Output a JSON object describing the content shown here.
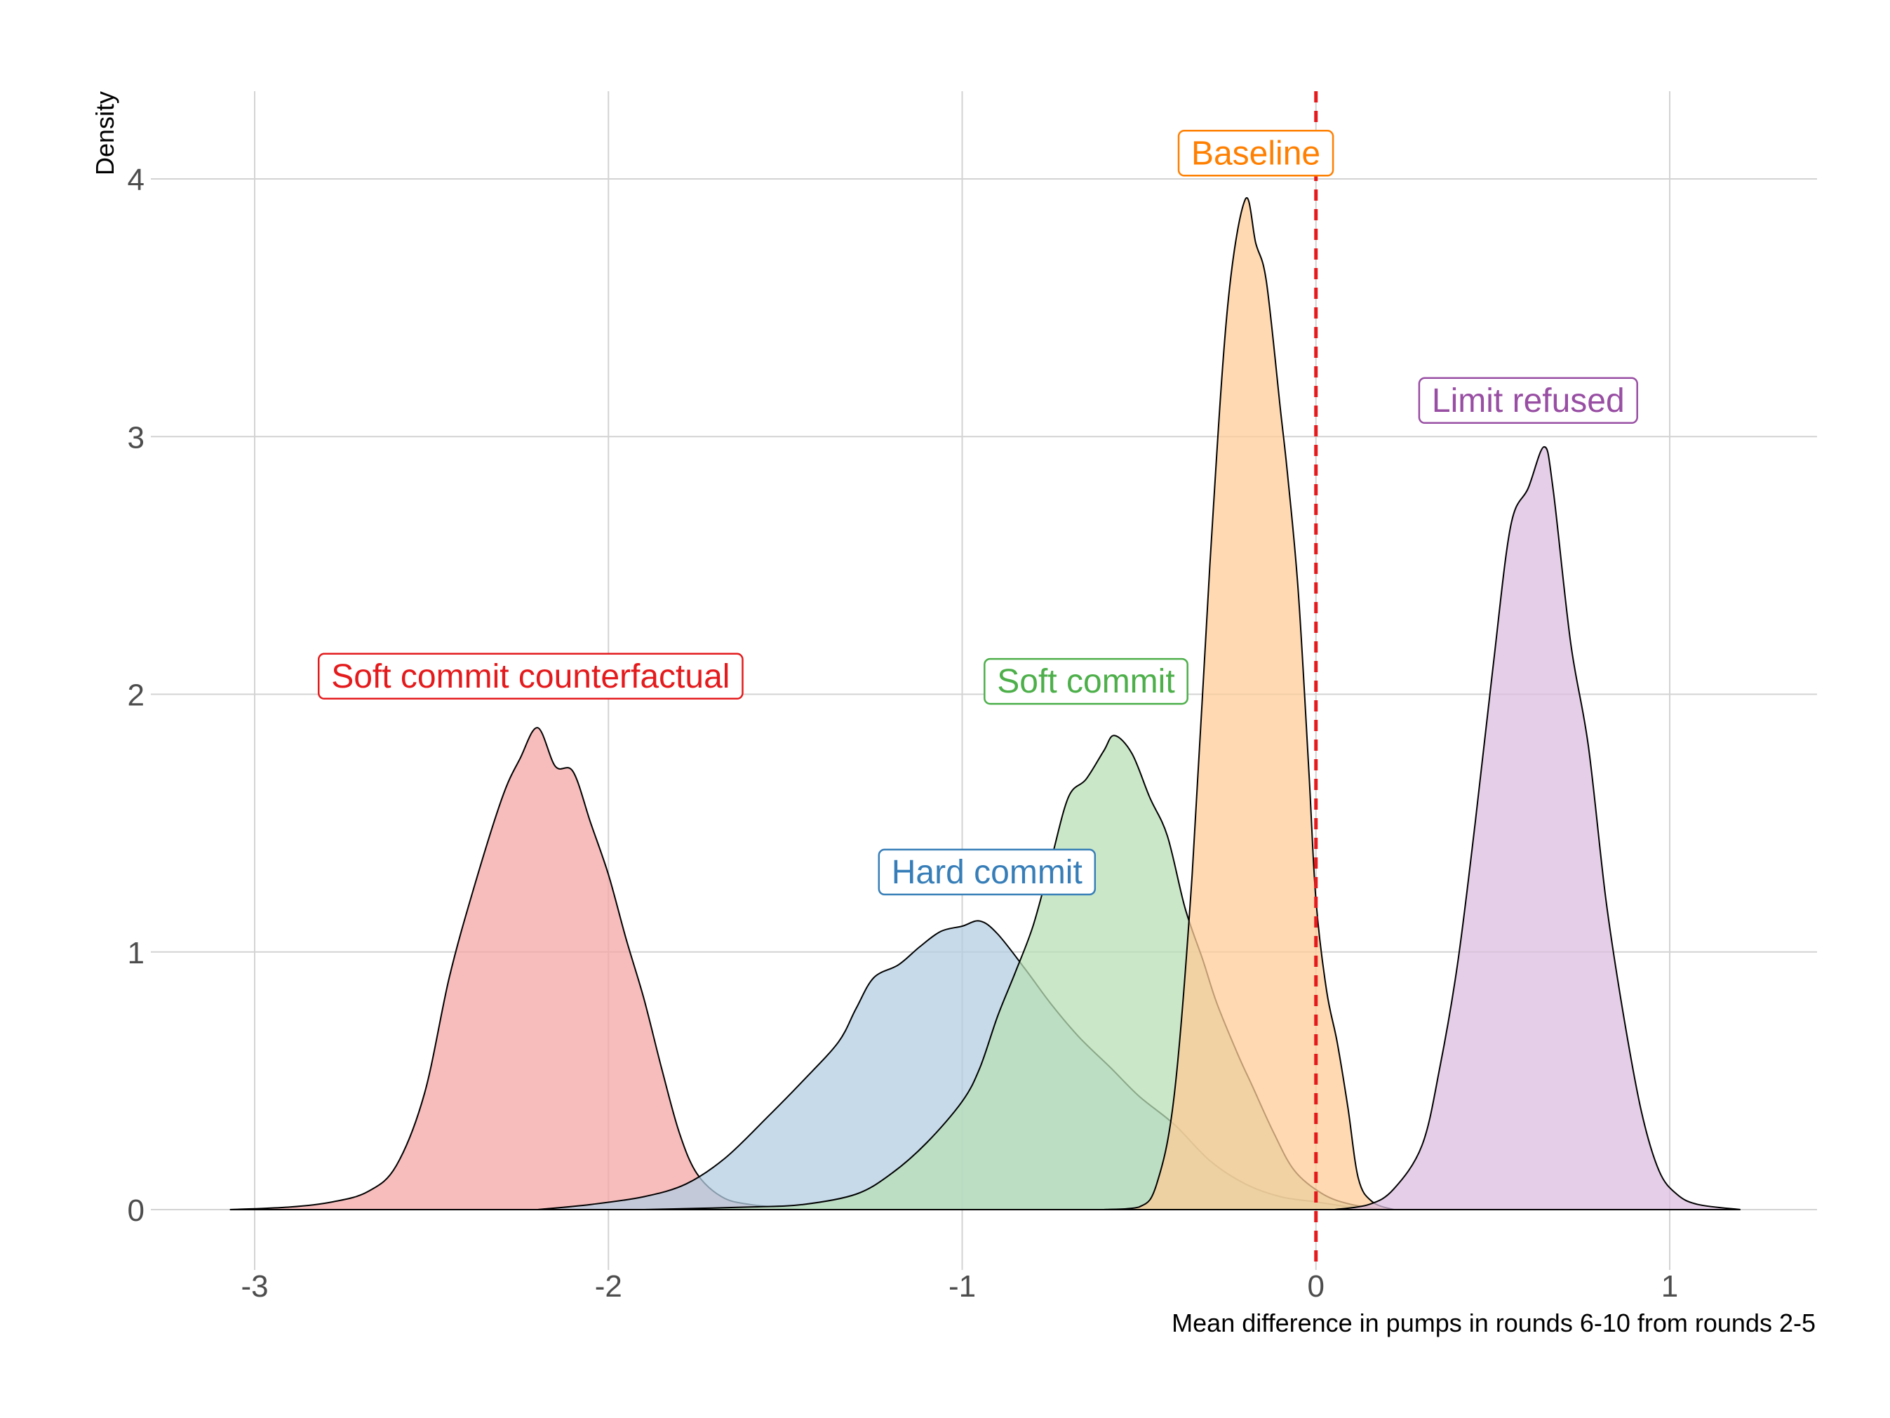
{
  "chart_data": {
    "type": "area",
    "title": "",
    "xlabel": "Mean difference in pumps in rounds 6-10 from rounds 2-5",
    "ylabel": "Density",
    "xlim": [
      -3.3,
      1.4
    ],
    "ylim": [
      -0.2,
      4.35
    ],
    "x_ticks": [
      -3,
      -2,
      -1,
      0,
      1
    ],
    "y_ticks": [
      0,
      1,
      2,
      3,
      4
    ],
    "grid": true,
    "legend": "none (labels placed on chart)",
    "reference_line": {
      "x": 0,
      "color": "#e41a1c",
      "style": "dashed"
    },
    "series": [
      {
        "name": "Soft commit counterfactual",
        "color": "#e41a1c",
        "fill": "#f4a5a6",
        "label_pos": {
          "x": -2.22,
          "y": 2.07
        },
        "points": [
          [
            -3.07,
            0
          ],
          [
            -2.9,
            0.01
          ],
          [
            -2.78,
            0.03
          ],
          [
            -2.68,
            0.07
          ],
          [
            -2.6,
            0.17
          ],
          [
            -2.52,
            0.45
          ],
          [
            -2.45,
            0.9
          ],
          [
            -2.38,
            1.25
          ],
          [
            -2.3,
            1.6
          ],
          [
            -2.25,
            1.75
          ],
          [
            -2.2,
            1.87
          ],
          [
            -2.15,
            1.72
          ],
          [
            -2.1,
            1.7
          ],
          [
            -2.05,
            1.5
          ],
          [
            -2.0,
            1.3
          ],
          [
            -1.95,
            1.05
          ],
          [
            -1.9,
            0.82
          ],
          [
            -1.85,
            0.55
          ],
          [
            -1.8,
            0.3
          ],
          [
            -1.75,
            0.14
          ],
          [
            -1.68,
            0.05
          ],
          [
            -1.6,
            0.02
          ],
          [
            -1.45,
            0
          ]
        ]
      },
      {
        "name": "Hard commit",
        "color": "#377eb8",
        "fill": "#b3cde3",
        "label_pos": {
          "x": -0.93,
          "y": 1.31
        },
        "points": [
          [
            -2.2,
            0
          ],
          [
            -2.05,
            0.02
          ],
          [
            -1.9,
            0.05
          ],
          [
            -1.78,
            0.1
          ],
          [
            -1.67,
            0.2
          ],
          [
            -1.55,
            0.36
          ],
          [
            -1.45,
            0.5
          ],
          [
            -1.35,
            0.65
          ],
          [
            -1.3,
            0.78
          ],
          [
            -1.25,
            0.9
          ],
          [
            -1.18,
            0.95
          ],
          [
            -1.12,
            1.02
          ],
          [
            -1.06,
            1.08
          ],
          [
            -1.0,
            1.1
          ],
          [
            -0.95,
            1.12
          ],
          [
            -0.9,
            1.07
          ],
          [
            -0.82,
            0.93
          ],
          [
            -0.75,
            0.8
          ],
          [
            -0.67,
            0.67
          ],
          [
            -0.58,
            0.55
          ],
          [
            -0.5,
            0.44
          ],
          [
            -0.4,
            0.33
          ],
          [
            -0.3,
            0.19
          ],
          [
            -0.2,
            0.1
          ],
          [
            -0.1,
            0.05
          ],
          [
            0.0,
            0.03
          ],
          [
            0.1,
            0.01
          ],
          [
            0.2,
            0
          ]
        ]
      },
      {
        "name": "Soft commit",
        "color": "#4daf4a",
        "fill": "#b8dfb5",
        "label_pos": {
          "x": -0.65,
          "y": 2.05
        },
        "points": [
          [
            -1.9,
            0
          ],
          [
            -1.6,
            0.01
          ],
          [
            -1.45,
            0.02
          ],
          [
            -1.3,
            0.06
          ],
          [
            -1.2,
            0.14
          ],
          [
            -1.1,
            0.26
          ],
          [
            -1.0,
            0.42
          ],
          [
            -0.95,
            0.55
          ],
          [
            -0.9,
            0.75
          ],
          [
            -0.85,
            0.92
          ],
          [
            -0.8,
            1.1
          ],
          [
            -0.75,
            1.35
          ],
          [
            -0.7,
            1.6
          ],
          [
            -0.65,
            1.67
          ],
          [
            -0.6,
            1.78
          ],
          [
            -0.57,
            1.84
          ],
          [
            -0.52,
            1.77
          ],
          [
            -0.47,
            1.6
          ],
          [
            -0.42,
            1.45
          ],
          [
            -0.37,
            1.17
          ],
          [
            -0.32,
            0.97
          ],
          [
            -0.28,
            0.8
          ],
          [
            -0.22,
            0.6
          ],
          [
            -0.18,
            0.48
          ],
          [
            -0.12,
            0.3
          ],
          [
            -0.06,
            0.15
          ],
          [
            0.02,
            0.06
          ],
          [
            0.1,
            0.02
          ],
          [
            0.2,
            0
          ]
        ]
      },
      {
        "name": "Baseline",
        "color": "#ff7f00",
        "fill": "#fdcc97",
        "label_pos": {
          "x": -0.17,
          "y": 4.1
        },
        "points": [
          [
            -0.6,
            0
          ],
          [
            -0.5,
            0.01
          ],
          [
            -0.45,
            0.1
          ],
          [
            -0.4,
            0.45
          ],
          [
            -0.35,
            1.3
          ],
          [
            -0.3,
            2.5
          ],
          [
            -0.25,
            3.5
          ],
          [
            -0.2,
            3.92
          ],
          [
            -0.17,
            3.75
          ],
          [
            -0.14,
            3.6
          ],
          [
            -0.1,
            3.1
          ],
          [
            -0.08,
            2.85
          ],
          [
            -0.05,
            2.4
          ],
          [
            -0.02,
            1.7
          ],
          [
            0.0,
            1.2
          ],
          [
            0.03,
            0.85
          ],
          [
            0.06,
            0.65
          ],
          [
            0.09,
            0.4
          ],
          [
            0.12,
            0.12
          ],
          [
            0.16,
            0.03
          ],
          [
            0.22,
            0
          ]
        ]
      },
      {
        "name": "Limit refused",
        "color": "#984ea3",
        "fill": "#dcbedf",
        "label_pos": {
          "x": 0.6,
          "y": 3.14
        },
        "points": [
          [
            0.05,
            0
          ],
          [
            0.15,
            0.02
          ],
          [
            0.22,
            0.08
          ],
          [
            0.3,
            0.25
          ],
          [
            0.35,
            0.55
          ],
          [
            0.4,
            0.95
          ],
          [
            0.45,
            1.5
          ],
          [
            0.5,
            2.1
          ],
          [
            0.55,
            2.65
          ],
          [
            0.6,
            2.8
          ],
          [
            0.645,
            2.96
          ],
          [
            0.67,
            2.8
          ],
          [
            0.72,
            2.2
          ],
          [
            0.77,
            1.8
          ],
          [
            0.82,
            1.2
          ],
          [
            0.87,
            0.75
          ],
          [
            0.92,
            0.38
          ],
          [
            0.97,
            0.15
          ],
          [
            1.02,
            0.06
          ],
          [
            1.08,
            0.02
          ],
          [
            1.2,
            0
          ]
        ]
      }
    ]
  }
}
